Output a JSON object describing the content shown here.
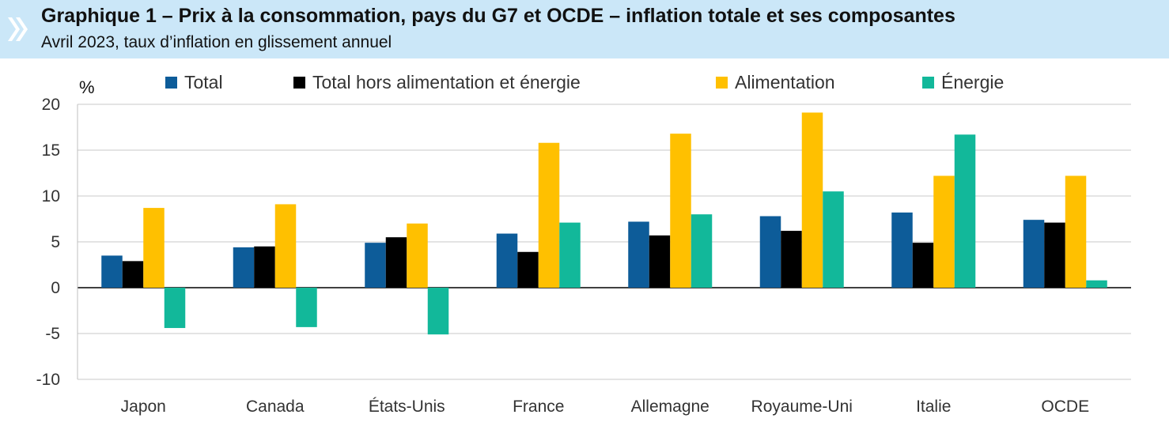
{
  "header": {
    "title": "Graphique 1 – Prix à la consommation, pays du G7 et OCDE – inflation totale et ses composantes",
    "subtitle": "Avril 2023, taux d’inflation en glissement annuel"
  },
  "chart_data": {
    "type": "bar",
    "title": "Graphique 1 – Prix à la consommation, pays du G7 et OCDE – inflation totale et ses composantes",
    "subtitle": "Avril 2023, taux d’inflation en glissement annuel",
    "ylabel": "%",
    "xlabel": "",
    "ylim": [
      -10,
      20
    ],
    "yticks": [
      -10,
      -5,
      0,
      5,
      10,
      15,
      20
    ],
    "grid": true,
    "legend_position": "top",
    "categories": [
      "Japon",
      "Canada",
      "États-Unis",
      "France",
      "Allemagne",
      "Royaume-Uni",
      "Italie",
      "OCDE"
    ],
    "series": [
      {
        "name": "Total",
        "color": "#0d5c99",
        "values": [
          3.5,
          4.4,
          4.9,
          5.9,
          7.2,
          7.8,
          8.2,
          7.4
        ]
      },
      {
        "name": "Total hors alimentation et énergie",
        "color": "#000000",
        "values": [
          2.9,
          4.5,
          5.5,
          3.9,
          5.7,
          6.2,
          4.9,
          7.1
        ]
      },
      {
        "name": "Alimentation",
        "color": "#ffc000",
        "values": [
          8.7,
          9.1,
          7.0,
          15.8,
          16.8,
          19.1,
          12.2,
          12.2
        ]
      },
      {
        "name": "Énergie",
        "color": "#12b89a",
        "values": [
          -4.4,
          -4.3,
          -5.1,
          7.1,
          8.0,
          10.5,
          16.7,
          0.8
        ]
      }
    ]
  }
}
